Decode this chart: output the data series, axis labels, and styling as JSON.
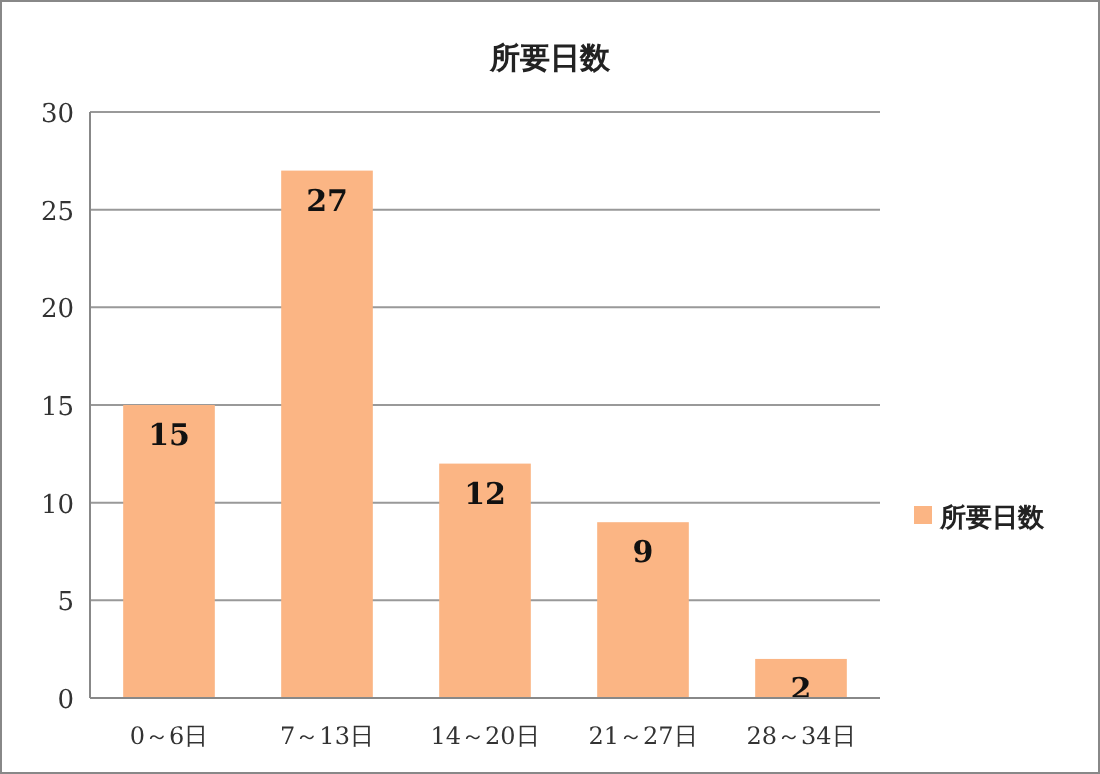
{
  "chart_data": {
    "type": "bar",
    "title": "所要日数",
    "categories": [
      "0～6日",
      "7～13日",
      "14～20日",
      "21～27日",
      "28～34日"
    ],
    "series": [
      {
        "name": "所要日数",
        "color": "#fbb584",
        "values": [
          15,
          27,
          12,
          9,
          2
        ]
      }
    ],
    "ylim": [
      0,
      30
    ],
    "yticks": [
      0,
      5,
      10,
      15,
      20,
      25,
      30
    ],
    "grid": "y",
    "legend": "right",
    "data_labels": true
  }
}
